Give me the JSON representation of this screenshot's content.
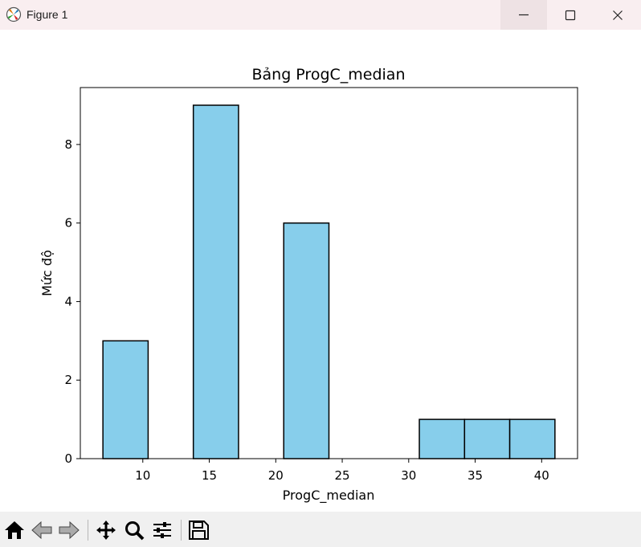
{
  "window": {
    "title": "Figure 1"
  },
  "chart_data": {
    "type": "bar",
    "title": "Bảng ProgC_median",
    "xlabel": "ProgC_median",
    "ylabel": "Mức độ",
    "bins": [
      {
        "start": 7.0,
        "end": 10.4,
        "count": 3
      },
      {
        "start": 10.4,
        "end": 13.8,
        "count": 0
      },
      {
        "start": 13.8,
        "end": 17.2,
        "count": 9
      },
      {
        "start": 17.2,
        "end": 20.6,
        "count": 0
      },
      {
        "start": 20.6,
        "end": 24.0,
        "count": 6
      },
      {
        "start": 24.0,
        "end": 27.4,
        "count": 0
      },
      {
        "start": 27.4,
        "end": 30.8,
        "count": 0
      },
      {
        "start": 30.8,
        "end": 34.2,
        "count": 1
      },
      {
        "start": 34.2,
        "end": 37.6,
        "count": 1
      },
      {
        "start": 37.6,
        "end": 41.0,
        "count": 1
      }
    ],
    "xlim": [
      5.3,
      42.7
    ],
    "ylim": [
      0,
      9.45
    ],
    "xticks": [
      10,
      15,
      20,
      25,
      30,
      35,
      40
    ],
    "yticks": [
      0,
      2,
      4,
      6,
      8
    ],
    "bar_color": "#87ceeb",
    "edge_color": "#000000",
    "grid": false
  },
  "toolbar": {
    "tools": [
      "home-icon",
      "back-icon",
      "forward-icon",
      "pan-icon",
      "zoom-icon",
      "configure-subplots-icon",
      "save-icon"
    ]
  }
}
